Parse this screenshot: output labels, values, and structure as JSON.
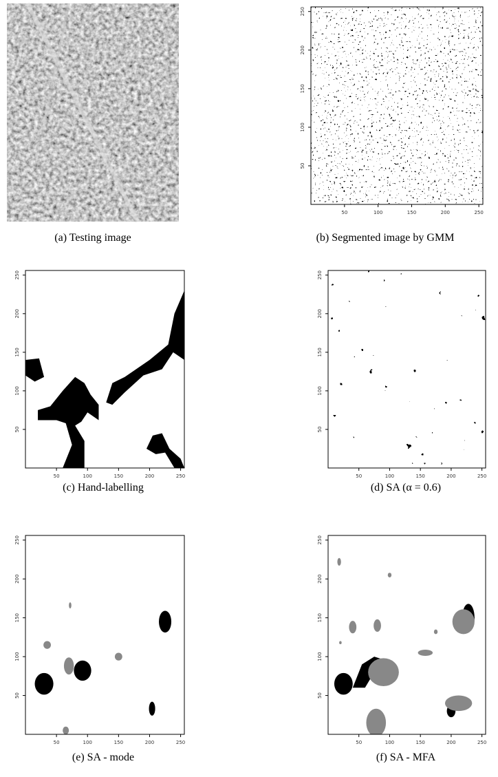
{
  "panels": [
    {
      "caption": "(a) Testing image"
    },
    {
      "caption": "(b) Segmented image by GMM",
      "xlim": [
        0,
        256
      ],
      "ylim": [
        0,
        256
      ],
      "xticks": [
        50,
        100,
        150,
        200,
        250
      ],
      "yticks": [
        50,
        100,
        150,
        200,
        250
      ]
    },
    {
      "caption": "(c) Hand-labelling",
      "xlim": [
        0,
        256
      ],
      "ylim": [
        0,
        256
      ],
      "xticks": [
        50,
        100,
        150,
        200,
        250
      ],
      "yticks": [
        50,
        100,
        150,
        200,
        250
      ]
    },
    {
      "caption": "(d) SA (α = 0.6)",
      "xlim": [
        0,
        256
      ],
      "ylim": [
        0,
        256
      ],
      "xticks": [
        50,
        100,
        150,
        200,
        250
      ],
      "yticks": [
        50,
        100,
        150,
        200,
        250
      ]
    },
    {
      "caption": "(e) SA - mode",
      "xlim": [
        0,
        256
      ],
      "ylim": [
        0,
        256
      ],
      "xticks": [
        50,
        100,
        150,
        200,
        250
      ],
      "yticks": [
        50,
        100,
        150,
        200,
        250
      ]
    },
    {
      "caption": "(f) SA - MFA",
      "xlim": [
        0,
        256
      ],
      "ylim": [
        0,
        256
      ],
      "xticks": [
        50,
        100,
        150,
        200,
        250
      ],
      "yticks": [
        50,
        100,
        150,
        200,
        250
      ]
    }
  ]
}
